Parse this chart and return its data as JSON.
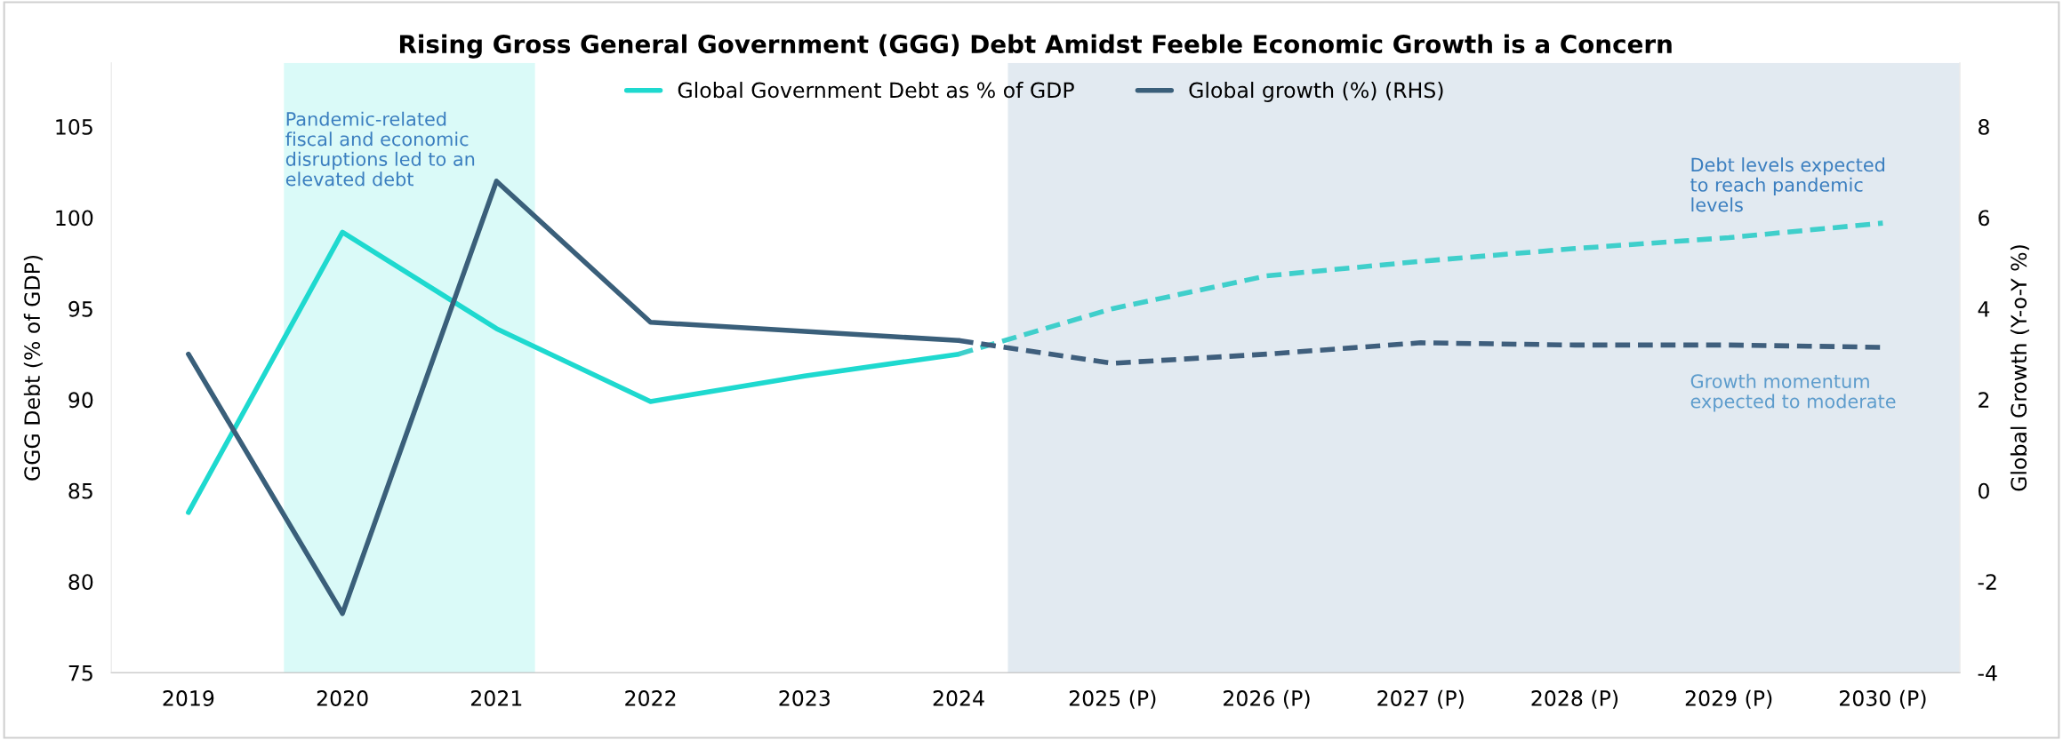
{
  "chart_data": {
    "type": "line",
    "title": "Rising Gross General Government (GGG) Debt Amidst Feeble Economic Growth is a Concern",
    "ylabel": "GGG Debt (% of GDP)",
    "y2label": "Global Growth (Y-o-Y %)",
    "xlim": [
      2018.5,
      2030.5
    ],
    "xticks": [
      2019,
      2020,
      2021,
      2022,
      2023,
      2024,
      {
        "value": 2025,
        "label": "2025 (P)"
      },
      {
        "value": 2026,
        "label": "2026 (P)"
      },
      {
        "value": 2027,
        "label": "2027 (P)"
      },
      {
        "value": 2028,
        "label": "2028 (P)"
      },
      {
        "value": 2029,
        "label": "2029 (P)"
      },
      {
        "value": 2030,
        "label": "2030 (P)"
      }
    ],
    "ylim": [
      75,
      108.5
    ],
    "yticks": [
      75,
      80,
      85,
      90,
      95,
      100,
      105
    ],
    "y2lim": [
      -4,
      9.4
    ],
    "y2ticks": [
      {
        "value": -4,
        "label": "-4"
      },
      {
        "value": -2,
        "label": "-2"
      },
      0,
      2,
      4,
      6,
      8
    ],
    "series": [
      {
        "name": "Global Government Debt as % of GDP",
        "color": "#1ed9cf",
        "line_style": "solid",
        "x": [
          2019,
          2020,
          2021,
          2022,
          2023,
          2024
        ],
        "values": [
          83.8,
          99.2,
          93.9,
          89.9,
          91.3,
          92.5
        ]
      },
      {
        "color": "#3fcfcb",
        "line_style": "dashed",
        "x": [
          2024,
          2025,
          2026,
          2027,
          2028,
          2029,
          2030
        ],
        "values": [
          92.5,
          95.0,
          96.8,
          97.6,
          98.3,
          98.9,
          99.7
        ]
      },
      {
        "name": "Global growth (%) (RHS)",
        "color": "#3a5f7a",
        "line_style": "solid",
        "axis": "y2",
        "x": [
          2019,
          2020,
          2021,
          2022,
          2023,
          2024
        ],
        "values": [
          3.0,
          -2.7,
          6.8,
          3.7,
          3.5,
          3.3
        ]
      },
      {
        "color": "#3f5f7d",
        "line_style": "dashed",
        "axis": "y2",
        "x": [
          2024,
          2025,
          2026,
          2027,
          2028,
          2029,
          2030
        ],
        "values": [
          3.3,
          2.8,
          3.0,
          3.25,
          3.2,
          3.2,
          3.15
        ]
      }
    ],
    "bands": [
      {
        "axis": "x",
        "from": 2019.62,
        "to": 2021.25,
        "color": "#dafaf8"
      },
      {
        "axis": "x",
        "from": 2024.32,
        "to": 2030.5,
        "color": "#e2eaf1"
      }
    ],
    "annotations": [
      "Pandemic-related\nfiscal and economic\ndisruptions led to an\nelevated debt",
      "Debt levels expected\nto reach pandemic\nlevels",
      "Growth momentum\nexpected to moderate"
    ],
    "legend": "top",
    "grid": false
  }
}
